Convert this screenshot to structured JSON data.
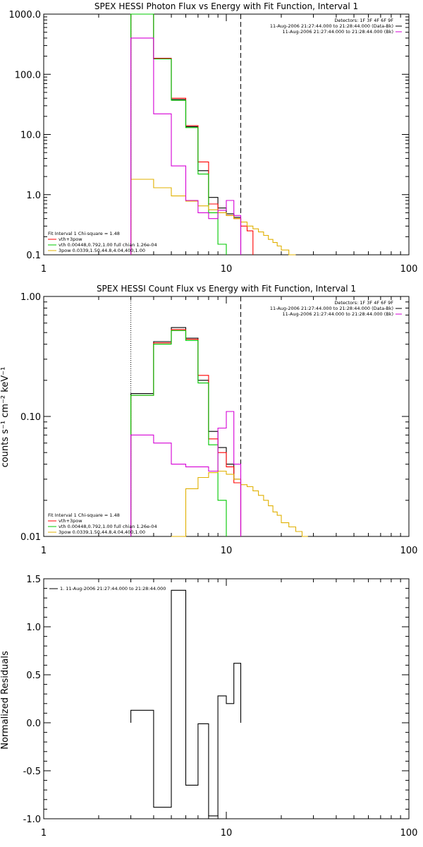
{
  "chart_data": [
    {
      "type": "line",
      "title": "SPEX HESSI Photon Flux vs Energy with Fit Function, Interval 1",
      "xlabel": "",
      "ylabel": "",
      "xscale": "log",
      "yscale": "log",
      "xlim": [
        1,
        100
      ],
      "ylim": [
        0.1,
        1000
      ],
      "xticks": [
        "1",
        "10",
        "100"
      ],
      "yticks": [
        "0.1",
        "1.0",
        "10.0",
        "100.0",
        "1000.0"
      ],
      "legend_tr": [
        {
          "text": "Detectors: 1F 3F 4F 6F 9F",
          "color": "#000000"
        },
        {
          "text": "11-Aug-2006 21:27:44.000 to 21:28:44.000 (Data-Bk)",
          "color": "#000000"
        },
        {
          "text": "11-Aug-2006 21:27:44.000 to 21:28:44.000 (Bk)",
          "color": "#d600d6"
        }
      ],
      "legend_bl": [
        {
          "text": "Fit Interval 1   Chi-square = 1.48",
          "color": "#000000"
        },
        {
          "text": "vth+3pow",
          "color": "#ff0000"
        },
        {
          "text": "vth 0.00448,0.792,1.00   full chian 1.26e-04",
          "color": "#00c800"
        },
        {
          "text": "3pow 0.0339,1.50,44.8,4.04,400,1.00",
          "color": "#e0b000"
        }
      ],
      "series": [
        {
          "name": "Data-Bk",
          "color": "#000000",
          "edges": [
            3,
            4,
            5,
            6,
            7,
            8,
            9,
            10,
            11,
            12
          ],
          "values": [
            1000,
            180,
            38,
            13.5,
            2.5,
            0.9,
            0.6,
            0.48,
            0.42
          ]
        },
        {
          "name": "vth+3pow",
          "color": "#ff0000",
          "edges": [
            3,
            4,
            5,
            6,
            7,
            8,
            9,
            10,
            11,
            12,
            13,
            14
          ],
          "values": [
            1000,
            185,
            40,
            14,
            3.5,
            0.7,
            0.5,
            0.45,
            0.4,
            0.3,
            0.25
          ]
        },
        {
          "name": "vth",
          "color": "#00c800",
          "edges": [
            3,
            4,
            5,
            6,
            7,
            8,
            9,
            10
          ],
          "values": [
            1000,
            180,
            37,
            13,
            2.2,
            0.5,
            0.15
          ]
        },
        {
          "name": "3pow",
          "color": "#e0b000",
          "edges": [
            3,
            4,
            5,
            6,
            7,
            8,
            9,
            10,
            11,
            12,
            13,
            14,
            15,
            16,
            17,
            18,
            19,
            20,
            22,
            24
          ],
          "values": [
            1.8,
            1.3,
            0.95,
            0.78,
            0.65,
            0.56,
            0.5,
            0.45,
            0.4,
            0.35,
            0.3,
            0.27,
            0.24,
            0.21,
            0.18,
            0.16,
            0.14,
            0.12,
            0.1
          ]
        },
        {
          "name": "Bk",
          "color": "#d600d6",
          "edges": [
            3,
            4,
            5,
            6,
            7,
            8,
            9,
            10,
            11,
            12
          ],
          "values": [
            400,
            22,
            3,
            0.8,
            0.5,
            0.4,
            0.55,
            0.8,
            0.45
          ]
        }
      ],
      "vlines": [
        {
          "x": 3,
          "style": "dotted"
        },
        {
          "x": 12,
          "style": "dashed"
        }
      ]
    },
    {
      "type": "line",
      "title": "SPEX HESSI Count Flux vs Energy with Fit Function, Interval 1",
      "xlabel": "",
      "ylabel": "counts s⁻¹ cm⁻² keV⁻¹",
      "xscale": "log",
      "yscale": "log",
      "xlim": [
        1,
        100
      ],
      "ylim": [
        0.01,
        1.0
      ],
      "xticks": [
        "1",
        "10",
        "100"
      ],
      "yticks": [
        "0.01",
        "0.10",
        "1.00"
      ],
      "legend_tr": [
        {
          "text": "Detectors: 1F 3F 4F 6F 9F",
          "color": "#000000"
        },
        {
          "text": "11-Aug-2006 21:27:44.000 to 21:28:44.000 (Data-Bk)",
          "color": "#000000"
        },
        {
          "text": "11-Aug-2006 21:27:44.000 to 21:28:44.000 (Bk)",
          "color": "#d600d6"
        }
      ],
      "legend_bl": [
        {
          "text": "Fit Interval 1   Chi-square = 1.48",
          "color": "#000000"
        },
        {
          "text": "vth+3pow",
          "color": "#ff0000"
        },
        {
          "text": "vth 0.00448,0.792,1.00   full chian 1.26e-04",
          "color": "#00c800"
        },
        {
          "text": "3pow 0.0339,1.50,44.8,4.04,400,1.00",
          "color": "#e0b000"
        }
      ],
      "series": [
        {
          "name": "Data-Bk",
          "color": "#000000",
          "edges": [
            3,
            4,
            5,
            6,
            7,
            8,
            9,
            10,
            11,
            12
          ],
          "values": [
            0.155,
            0.42,
            0.55,
            0.45,
            0.2,
            0.075,
            0.055,
            0.04,
            0.03
          ]
        },
        {
          "name": "vth+3pow",
          "color": "#ff0000",
          "edges": [
            3,
            4,
            5,
            6,
            7,
            8,
            9,
            10,
            11,
            12
          ],
          "values": [
            0.15,
            0.41,
            0.53,
            0.44,
            0.22,
            0.065,
            0.05,
            0.038,
            0.028
          ]
        },
        {
          "name": "vth",
          "color": "#00c800",
          "edges": [
            3,
            4,
            5,
            6,
            7,
            8,
            9,
            10
          ],
          "values": [
            0.15,
            0.4,
            0.52,
            0.43,
            0.19,
            0.058,
            0.02
          ]
        },
        {
          "name": "3pow",
          "color": "#e0b000",
          "edges": [
            5,
            6,
            7,
            8,
            9,
            10,
            11,
            12,
            13,
            14,
            15,
            16,
            17,
            18,
            19,
            20,
            22,
            24,
            26,
            28
          ],
          "values": [
            0.009,
            0.025,
            0.031,
            0.034,
            0.035,
            0.033,
            0.03,
            0.027,
            0.026,
            0.024,
            0.022,
            0.02,
            0.018,
            0.016,
            0.015,
            0.013,
            0.012,
            0.011,
            0.01
          ]
        },
        {
          "name": "Bk",
          "color": "#d600d6",
          "edges": [
            3,
            4,
            5,
            6,
            7,
            8,
            9,
            10,
            11,
            12
          ],
          "values": [
            0.07,
            0.06,
            0.04,
            0.038,
            0.038,
            0.035,
            0.08,
            0.11,
            0.04
          ]
        }
      ],
      "vlines": [
        {
          "x": 3,
          "style": "dotted"
        },
        {
          "x": 12,
          "style": "dashed"
        }
      ]
    },
    {
      "type": "line",
      "title": "",
      "xlabel": "",
      "ylabel": "Normalized Residuals",
      "xscale": "log",
      "yscale": "linear",
      "xlim": [
        1,
        100
      ],
      "ylim": [
        -1.0,
        1.5
      ],
      "xticks": [
        "1",
        "10",
        "100"
      ],
      "yticks": [
        "-1.0",
        "-0.5",
        "0.0",
        "0.5",
        "1.0",
        "1.5"
      ],
      "legend_tl": [
        {
          "text": "1. 11-Aug-2006 21:27:44.000 to 21:28:44.000",
          "color": "#000000"
        }
      ],
      "series": [
        {
          "name": "1. 11-Aug-2006 21:27:44.000 to 21:28:44.000",
          "color": "#000000",
          "edges": [
            3,
            4,
            5,
            6,
            7,
            8,
            9,
            10,
            11,
            12
          ],
          "values": [
            0.13,
            -0.88,
            1.38,
            -0.65,
            -0.01,
            -0.97,
            0.28,
            0.2,
            0.62
          ]
        }
      ]
    }
  ]
}
